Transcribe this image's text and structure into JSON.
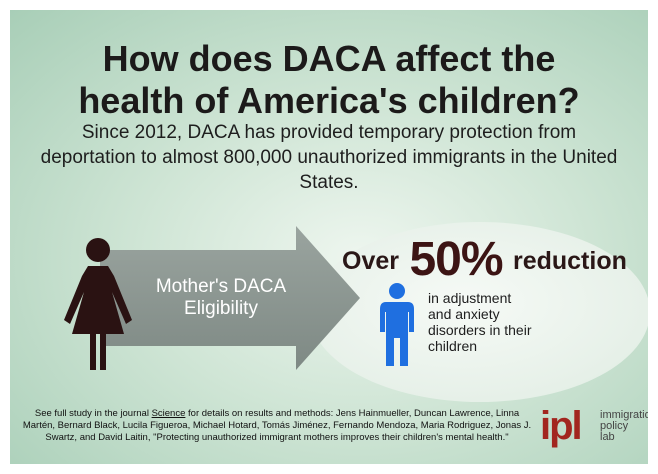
{
  "title": {
    "line1": "How does DACA affect the",
    "line2": "health of America's children?"
  },
  "subtitle": "Since 2012, DACA has provided temporary protection from deportation to almost 800,000 unauthorized immigrants in the United States.",
  "arrow": {
    "line1": "Mother's DACA",
    "line2": "Eligibility"
  },
  "stat": {
    "prefix": "Over",
    "value": "50%",
    "suffix": "reduction",
    "desc_line1": "in adjustment",
    "desc_line2": "and anxiety",
    "desc_line3": "disorders in their",
    "desc_line4": "children"
  },
  "footer": {
    "lead": "See full study in the journal ",
    "journal": "Science",
    "rest": " for details on results and methods: Jens Hainmueller, Duncan Lawrence, Linna Martén, Bernard Black, Lucila Figueroa, Michael Hotard, Tomás Jiménez, Fernando Mendoza, Maria Rodriguez, Jonas J. Swartz, and David Laitin, \"Protecting unauthorized immigrant mothers improves their children's mental health.\""
  },
  "logo": {
    "mark": "ipl",
    "name_line1": "immigration",
    "name_line2": "policy",
    "name_line3": "lab"
  },
  "colors": {
    "woman_icon": "#2a1212",
    "child_icon": "#1f6fe0",
    "arrow": "#8d9893",
    "logo": "#a2261f"
  },
  "icons": {
    "woman": "woman-figure-icon",
    "child": "child-figure-icon",
    "arrow": "right-arrow-icon"
  }
}
